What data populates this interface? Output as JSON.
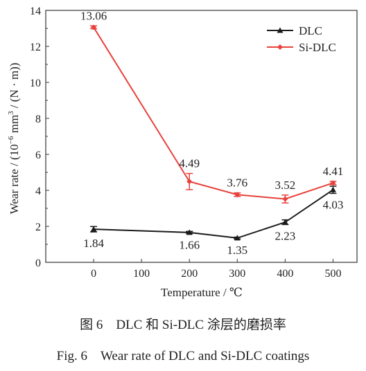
{
  "chart_data": {
    "type": "line",
    "xlabel": "Temperature / ℃",
    "ylabel_main": "Wear rate / (10",
    "ylabel_sup1": "−6",
    "ylabel_mid": " mm",
    "ylabel_sup2": "3",
    "ylabel_end": " / (N · m))",
    "xlim": [
      -100,
      550
    ],
    "ylim": [
      0,
      14
    ],
    "xticks": [
      0,
      100,
      200,
      300,
      400,
      500
    ],
    "yticks": [
      0,
      2,
      4,
      6,
      8,
      10,
      12,
      14
    ],
    "legend_position": "top-right",
    "series": [
      {
        "name": "DLC",
        "color": "#1a1a1a",
        "marker": "triangle",
        "x": [
          0,
          200,
          300,
          400,
          500
        ],
        "y": [
          1.84,
          1.66,
          1.35,
          2.23,
          4.03
        ],
        "err": [
          0.15,
          0.06,
          0.05,
          0.13,
          0.2
        ],
        "labels": [
          "1.84",
          "1.66",
          "1.35",
          "2.23",
          "4.03"
        ],
        "label_side": [
          "below",
          "below",
          "below",
          "below",
          "below"
        ]
      },
      {
        "name": "Si-DLC",
        "color": "#e8413b",
        "marker": "diamond",
        "x": [
          0,
          200,
          300,
          400,
          500
        ],
        "y": [
          13.06,
          4.49,
          3.76,
          3.52,
          4.41
        ],
        "err": [
          0.08,
          0.45,
          0.1,
          0.22,
          0.09
        ],
        "labels": [
          "13.06",
          "4.49",
          "3.76",
          "3.52",
          "4.41"
        ],
        "label_side": [
          "above",
          "above",
          "above",
          "above",
          "above"
        ]
      }
    ]
  },
  "caption": {
    "cn": "图 6　DLC 和 Si-DLC 涂层的磨损率",
    "en": "Fig. 6　Wear rate of DLC and Si-DLC coatings"
  }
}
